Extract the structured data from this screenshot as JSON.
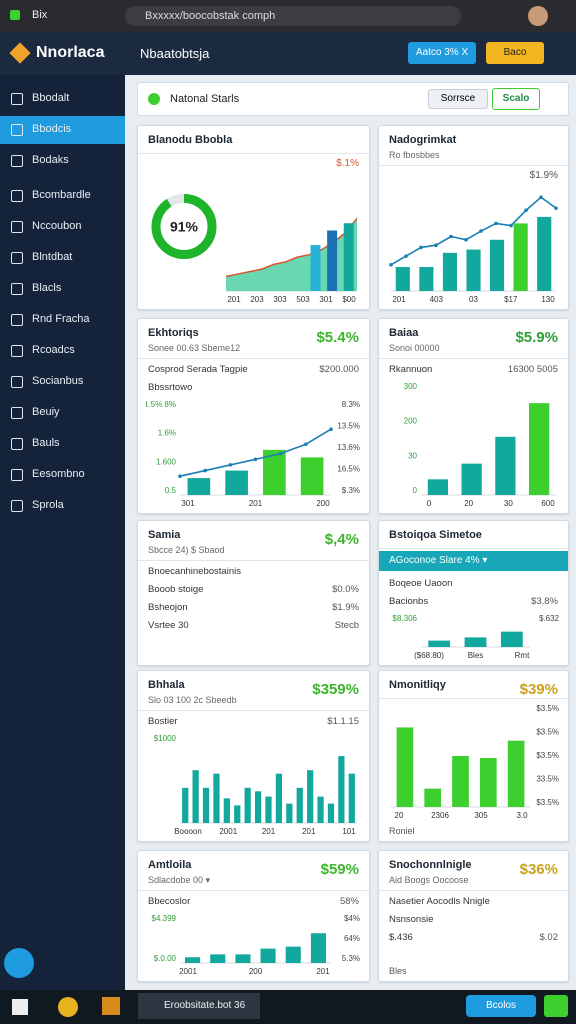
{
  "browser": {
    "tab": "Bix",
    "address": "Bxxxxx/boocobstak comph"
  },
  "app": {
    "logo": "Nnorlaca",
    "header_title": "Nbaatobtsja",
    "button_primary": "Aatco 3% X",
    "button_secondary": "Baco"
  },
  "sidebar": {
    "items": [
      "Bbodalt",
      "Bbodcis",
      "Bodaks",
      "Bcombardle",
      "Nccoubon",
      "Blntdbat",
      "Blacls",
      "Rnd Fracha",
      "Rcoadcs",
      "Socianbus",
      "Beuiy",
      "Bauls",
      "Eesombno",
      "Sprola"
    ],
    "active": 1
  },
  "filter": {
    "label": "Natonal Starls",
    "button": "Sorrsce",
    "active": "Scalo"
  },
  "cards": [
    {
      "title": "Blanodu Bbobla",
      "chart": {
        "donut": {
          "value": 91,
          "label": "91%"
        },
        "area": [
          12,
          14,
          16,
          18,
          22,
          24,
          28,
          30,
          34,
          40,
          48,
          60
        ],
        "line_color": "#d9542b",
        "area_color": "#4fd1a5",
        "bars": [
          38,
          50,
          56
        ],
        "bar_colors": [
          "#27b3d6",
          "#1a6fb5",
          "#13a89e"
        ],
        "ylim": [
          0,
          100
        ],
        "note": "$.1%",
        "note_color": "#d9542b",
        "xlabels": [
          "201",
          "203",
          "303",
          "503",
          "301",
          "$00"
        ]
      }
    },
    {
      "title": "Nadogrimkat",
      "subtitle": "Ro fbosbbes",
      "chart": {
        "note": "$1.9%",
        "note_color": "#555555",
        "bars": [
          22,
          22,
          35,
          38,
          47,
          62,
          68
        ],
        "bar_colors": [
          "#13a89e",
          "#13a89e",
          "#13a89e",
          "#13a89e",
          "#13a89e",
          "#3ccf2d",
          "#13a89e"
        ],
        "line": [
          24,
          32,
          40,
          42,
          50,
          47,
          55,
          62,
          60,
          74,
          86,
          76
        ],
        "line_color": "#1a7fb5",
        "ylim": [
          0,
          100
        ],
        "xlabels": [
          "201",
          "403",
          "03",
          "$17",
          "130"
        ]
      }
    },
    {
      "title": "Ekhtoriqs",
      "subtitle": "Sonee 00.63 Sbeme12",
      "value": "$5.4%",
      "value_color": "#3cb52d",
      "rows": [
        [
          "Cosprod Serada Tagpie",
          "$200.000"
        ],
        [
          "Bbssrtowo"
        ]
      ],
      "chart": {
        "bars": [
          18,
          26,
          48,
          40
        ],
        "bar_colors": [
          "#13a89e",
          "#13a89e",
          "#3ccf2d",
          "#3ccf2d"
        ],
        "line": [
          20,
          26,
          32,
          38,
          44,
          54,
          70
        ],
        "line_color": "#1a7fb5",
        "ylim": [
          0,
          100
        ],
        "ylabels": [
          "1.5% 8%",
          "1.6%",
          "1.600",
          "0.5"
        ],
        "rlabels": [
          "8.3%",
          "13.5%",
          "13.6%",
          "16.5%",
          "$.3%"
        ],
        "xlabels": [
          "301",
          "201",
          "200"
        ]
      }
    },
    {
      "title": "Baiaa",
      "subtitle": "Sonoi 00000",
      "value": "$5.9%",
      "value_color": "#2f9e3a",
      "rows": [
        [
          "Rkannuon",
          "16300 5005"
        ]
      ],
      "chart": {
        "bars": [
          14,
          28,
          52,
          82
        ],
        "bar_colors": [
          "#13a89e",
          "#13a89e",
          "#13a89e",
          "#3ccf2d"
        ],
        "ylim": [
          0,
          100
        ],
        "ylabels": [
          "300",
          "200",
          "30",
          "0"
        ],
        "xlabels": [
          "0",
          "20",
          "30",
          "600"
        ]
      }
    },
    {
      "title": "Samia",
      "subtitle": "Sbcce 24) $ Sbaod",
      "value": "$,4%",
      "value_color": "#3cb52d",
      "rows": [
        [
          "Bnoecanhinebostainis"
        ],
        [
          "Booob stoige",
          "$0.0%"
        ],
        [
          "Bsheojon",
          "$1.9%"
        ],
        [
          "Vsrtee 30",
          "Stecb"
        ]
      ]
    },
    {
      "title": "Bstoiqoa Simetoe",
      "banner": "AGoconoe Slare 4% ▾",
      "rows": [
        [
          "Boqeoe Uaoon"
        ],
        [
          "Bacionbs",
          "$3.8%"
        ]
      ],
      "chart": {
        "bars": [
          20,
          30,
          48
        ],
        "bar_colors": [
          "#13a89e",
          "#13a89e",
          "#13a89e"
        ],
        "ylim": [
          0,
          100
        ],
        "ylabels": [
          "$8.306"
        ],
        "rlabels": [
          "$.632"
        ],
        "xlabels": [
          "($68.80)",
          "Bles",
          "Rmt"
        ]
      }
    },
    {
      "title": "Bhhala",
      "subtitle": "Slo 03 100 2c Sbeedb",
      "value": "$359%",
      "value_color": "#3cb52d",
      "rows": [
        [
          "Bostier",
          "$1.1.15"
        ]
      ],
      "chart": {
        "bars": [
          40,
          60,
          40,
          56,
          28,
          20,
          40,
          36,
          30,
          56,
          22,
          40,
          60,
          30,
          22,
          76,
          56
        ],
        "bar_colors": [
          "#13a89e"
        ],
        "ylim": [
          0,
          100
        ],
        "ylabels": [
          "$1000"
        ],
        "xlabels": [
          "Boooon",
          "2001",
          "201",
          "201",
          "101"
        ]
      }
    },
    {
      "title": "Nmonitliqy",
      "value": "$39%",
      "value_color": "#c9a21a",
      "chart": {
        "bars": [
          78,
          18,
          50,
          48,
          65
        ],
        "bar_colors": [
          "#3ccf2d"
        ],
        "ylim": [
          0,
          100
        ],
        "rlabels": [
          "$3.5%",
          "$3.5%",
          "$3.5%",
          "33.5%",
          "$3.5%"
        ],
        "xlabels": [
          "20",
          "2306",
          "305",
          "3.0"
        ]
      },
      "footer": "Roniel"
    },
    {
      "title": "Amtloila",
      "subtitle": "Sdlacdobe 00 ▾",
      "value": "$59%",
      "value_color": "#3cb52d",
      "rows": [
        [
          "Bbecoslor",
          "58%"
        ]
      ],
      "chart": {
        "bars": [
          12,
          18,
          18,
          30,
          34,
          62
        ],
        "bar_colors": [
          "#13a89e"
        ],
        "ylim": [
          0,
          100
        ],
        "ylabels": [
          "$4.399",
          "$.0.00"
        ],
        "rlabels": [
          "$4%",
          "64%",
          "5.3%"
        ],
        "xlabels": [
          "2001",
          "200",
          "201"
        ]
      }
    },
    {
      "title": "Snochonnlnigle",
      "subtitle": "Aid Boogs Oocoose",
      "value": "$36%",
      "value_color": "#c9a21a",
      "rows": [
        [
          "Nasetier Aocodls Nnigle"
        ],
        [
          "Nsnsonsie"
        ],
        [
          "$.436",
          "$.02"
        ]
      ],
      "footer": "Bles"
    }
  ],
  "taskbar": {
    "app": "Eroobsitate.bot 36",
    "button": "Bcolos"
  }
}
